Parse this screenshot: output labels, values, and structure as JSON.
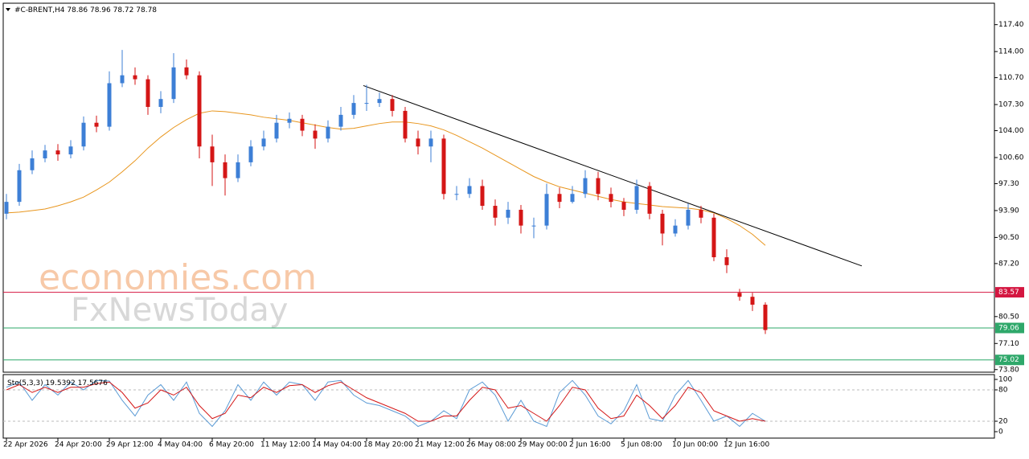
{
  "chart_data": {
    "type": "candlestick",
    "symbol": "#C-BRENT,H4",
    "quote": [
      78.86,
      78.96,
      78.72,
      78.78
    ],
    "watermark": [
      "economies.com",
      "FxNewsToday"
    ],
    "categories": [
      "22 Apr 2026",
      null,
      null,
      null,
      "24 Apr 20:00",
      null,
      null,
      null,
      "29 Apr 12:00",
      null,
      null,
      null,
      "4 May 04:00",
      null,
      null,
      null,
      "6 May 20:00",
      null,
      null,
      null,
      "11 May 12:00",
      null,
      null,
      null,
      "14 May 04:00",
      null,
      null,
      null,
      "18 May 20:00",
      null,
      null,
      null,
      "21 May 12:00",
      null,
      null,
      null,
      "26 May 08:00",
      null,
      null,
      null,
      "29 May 00:00",
      null,
      null,
      null,
      "2 Jun 16:00",
      null,
      null,
      null,
      "5 Jun 08:00",
      null,
      null,
      null,
      "10 Jun 00:00",
      null,
      null,
      null,
      "12 Jun 16:00",
      null,
      null,
      null
    ],
    "open": [
      93.5,
      95,
      99,
      100.5,
      101.5,
      101,
      102,
      105,
      104.5,
      110,
      111,
      110.5,
      107,
      108,
      112,
      111,
      102,
      100,
      98,
      100,
      102,
      103,
      105,
      105.5,
      104,
      103,
      104.5,
      106,
      107.5,
      107.5,
      108,
      106.5,
      103,
      102,
      103,
      96,
      96,
      97,
      94.5,
      93,
      94,
      92,
      92,
      96,
      95,
      96,
      98,
      96,
      95,
      94,
      97,
      93.5,
      91,
      92,
      94,
      93,
      88,
      83.5,
      83,
      82
    ],
    "high": [
      96,
      99.8,
      101.5,
      102.2,
      102.3,
      102.8,
      105.8,
      105.9,
      111.5,
      114.2,
      112,
      111,
      109,
      113.8,
      113,
      111.5,
      103.5,
      101,
      101,
      102.8,
      104,
      106,
      106.3,
      106,
      104.8,
      105.3,
      107,
      108.5,
      109.8,
      108.8,
      108.5,
      107,
      104,
      104,
      103.5,
      97,
      98,
      97.8,
      95.3,
      95,
      94.6,
      93,
      97.3,
      96.8,
      97,
      99,
      98.8,
      96.8,
      95.5,
      97.8,
      97.5,
      94,
      92.8,
      94.8,
      94.5,
      93.5,
      89,
      84,
      83.5,
      82.3
    ],
    "low": [
      92.8,
      94.5,
      98.5,
      100,
      100.2,
      100.5,
      101.5,
      103.8,
      104,
      109.5,
      109.8,
      106,
      106.2,
      107.5,
      110.5,
      100.5,
      97,
      95.8,
      97.5,
      99.5,
      101.5,
      102.5,
      104.3,
      103.3,
      101.7,
      102.5,
      104,
      105.5,
      106.5,
      107,
      105.8,
      102.5,
      101,
      100,
      95.3,
      95.2,
      95.5,
      94,
      92,
      92.2,
      91,
      90.4,
      91.5,
      94.2,
      94.8,
      95.5,
      95.2,
      94.3,
      93.2,
      93.5,
      92.8,
      89.5,
      90.6,
      91.5,
      92.3,
      87.5,
      86,
      82.5,
      81.2,
      78.3
    ],
    "close": [
      95,
      99,
      100.5,
      101.5,
      101,
      102,
      105,
      104.5,
      110,
      111,
      110.5,
      107,
      108,
      112,
      111,
      102,
      100,
      98,
      100,
      102,
      103,
      105,
      105.5,
      104,
      103,
      104.5,
      106,
      107.5,
      107.5,
      108,
      106.5,
      103,
      102,
      103,
      96,
      96,
      97,
      94.5,
      93,
      94,
      92,
      92,
      96,
      95,
      96,
      98,
      96,
      95,
      94,
      97,
      93.5,
      91,
      92,
      94,
      93,
      88,
      87,
      83,
      82,
      78.8
    ],
    "up_color": "#3d7fd6",
    "down_color": "#d41616",
    "ma": {
      "color": "#e8961e",
      "values": [
        93.6,
        93.7,
        93.9,
        94.1,
        94.5,
        95,
        95.6,
        96.5,
        97.5,
        98.8,
        100.2,
        101.8,
        103.2,
        104.4,
        105.4,
        106.2,
        106.5,
        106.4,
        106.2,
        106,
        105.7,
        105.5,
        105.3,
        105,
        104.7,
        104.4,
        104.2,
        104.3,
        104.6,
        104.9,
        105.1,
        105.1,
        104.9,
        104.6,
        104.1,
        103.4,
        102.6,
        101.8,
        100.9,
        100,
        99.1,
        98.2,
        97.5,
        96.9,
        96.5,
        96.1,
        95.7,
        95.3,
        95,
        94.8,
        94.6,
        94.4,
        94.3,
        94.2,
        94,
        93.6,
        92.9,
        92,
        90.9,
        89.5
      ]
    },
    "trendline": {
      "x": [
        27.75,
        66.5
      ],
      "y": [
        109.7,
        86.9
      ],
      "color": "#000000"
    },
    "levels": [
      {
        "value": 83.57,
        "color": "#d41640"
      },
      {
        "value": 79.06,
        "color": "#2ea86a"
      },
      {
        "value": 75.02,
        "color": "#2ea86a"
      }
    ],
    "ylim": [
      73.47,
      120.11
    ],
    "yticks": [
      {
        "value": 117.4,
        "label": "117.40"
      },
      {
        "value": 114,
        "label": "114.00"
      },
      {
        "value": 110.7,
        "label": "110.70"
      },
      {
        "value": 107.3,
        "label": "107.30"
      },
      {
        "value": 104,
        "label": "104.00"
      },
      {
        "value": 100.6,
        "label": "100.60"
      },
      {
        "value": 97.3,
        "label": "97.30"
      },
      {
        "value": 93.9,
        "label": "93.90"
      },
      {
        "value": 90.5,
        "label": "90.50"
      },
      {
        "value": 87.2,
        "label": "87.20"
      },
      {
        "value": 80.5,
        "label": "80.50"
      },
      {
        "value": 77.1,
        "label": "77.10"
      },
      {
        "value": 73.8,
        "label": "73.80"
      }
    ],
    "stochastic": {
      "label": "Sto(5,3,3)",
      "readout": [
        19.5392,
        17.5676
      ],
      "ylim": [
        0,
        100
      ],
      "yticks": [
        100,
        80,
        20,
        0
      ],
      "levels": [
        80,
        20
      ],
      "series": [
        {
          "color": "#5b9bd5",
          "values": [
            85,
            95,
            60,
            90,
            70,
            95,
            80,
            98,
            97,
            60,
            30,
            70,
            90,
            60,
            95,
            35,
            10,
            40,
            90,
            60,
            95,
            70,
            95,
            90,
            60,
            95,
            98,
            70,
            55,
            50,
            40,
            30,
            10,
            20,
            40,
            25,
            80,
            95,
            70,
            20,
            60,
            20,
            10,
            75,
            98,
            70,
            30,
            15,
            40,
            90,
            25,
            20,
            70,
            98,
            60,
            20,
            30,
            10,
            35,
            20
          ]
        },
        {
          "color": "#d41616",
          "values": [
            80,
            90,
            75,
            85,
            75,
            85,
            85,
            92,
            95,
            75,
            45,
            55,
            80,
            70,
            85,
            50,
            25,
            35,
            70,
            65,
            85,
            75,
            88,
            90,
            75,
            88,
            95,
            80,
            65,
            55,
            45,
            35,
            20,
            20,
            30,
            30,
            60,
            85,
            80,
            45,
            50,
            35,
            20,
            50,
            85,
            80,
            45,
            25,
            30,
            70,
            50,
            25,
            50,
            85,
            75,
            40,
            30,
            20,
            25,
            20
          ]
        }
      ]
    }
  }
}
